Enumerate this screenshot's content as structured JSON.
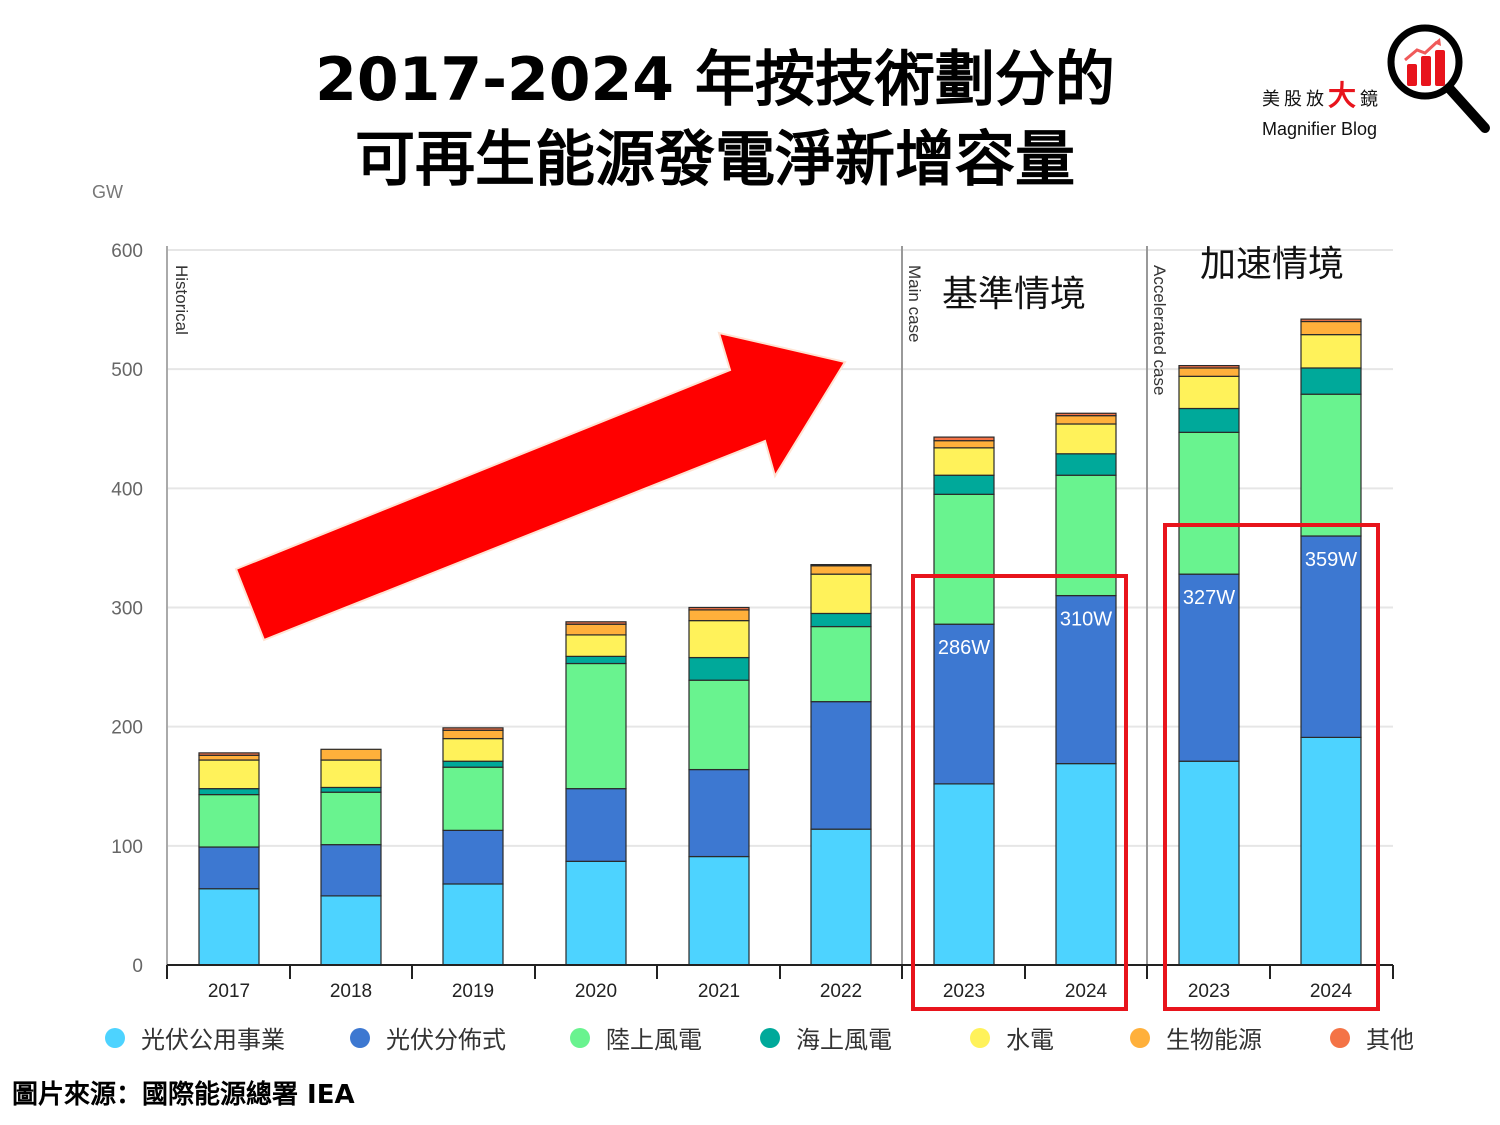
{
  "title": {
    "line1": "2017-2024 年按技術劃分的",
    "line2": "可再生能源發電淨新增容量"
  },
  "logo": {
    "cn_part1": "美股放",
    "cn_big": "大",
    "cn_part2": "鏡",
    "en": "Magnifier Blog",
    "icon": "magnifier-chart-icon"
  },
  "source": "圖片來源：國際能源總署 IEA",
  "annotations": {
    "main_case_cn": "基準情境",
    "accelerated_case_cn": "加速情境",
    "historical_label": "Historical",
    "main_case_label": "Main case",
    "accelerated_case_label": "Accelerated case",
    "solar_labels": [
      "286W",
      "310W",
      "327W",
      "359W"
    ],
    "trend_arrow": "up-right-arrow"
  },
  "chart_data": {
    "type": "bar",
    "stacked": true,
    "title": "2017-2024 年按技術劃分的可再生能源發電淨新增容量",
    "ylabel": "GW",
    "xlabel": "",
    "ylim": [
      0,
      600
    ],
    "yticks": [
      0,
      100,
      200,
      300,
      400,
      500,
      600
    ],
    "grid": true,
    "legend_position": "bottom",
    "groups": [
      {
        "name": "Historical",
        "categories": [
          "2017",
          "2018",
          "2019",
          "2020",
          "2021",
          "2022"
        ]
      },
      {
        "name": "Main case",
        "categories": [
          "2023",
          "2024"
        ]
      },
      {
        "name": "Accelerated case",
        "categories": [
          "2023",
          "2024"
        ]
      }
    ],
    "categories": [
      "2017",
      "2018",
      "2019",
      "2020",
      "2021",
      "2022",
      "2023",
      "2024",
      "2023",
      "2024"
    ],
    "series": [
      {
        "name": "光伏公用事業",
        "color": "#4dd3ff",
        "values": [
          64,
          58,
          68,
          87,
          91,
          114,
          152,
          169,
          171,
          191
        ]
      },
      {
        "name": "光伏分佈式",
        "color": "#3d78d1",
        "values": [
          35,
          43,
          45,
          61,
          73,
          107,
          134,
          141,
          157,
          169
        ]
      },
      {
        "name": "陸上風電",
        "color": "#69f38f",
        "values": [
          44,
          44,
          53,
          105,
          75,
          63,
          109,
          101,
          119,
          119
        ]
      },
      {
        "name": "海上風電",
        "color": "#00a99a",
        "values": [
          5,
          4,
          5,
          6,
          19,
          11,
          16,
          18,
          20,
          22
        ]
      },
      {
        "name": "水電",
        "color": "#fff25a",
        "values": [
          24,
          23,
          19,
          18,
          31,
          33,
          23,
          25,
          27,
          28
        ]
      },
      {
        "name": "生物能源",
        "color": "#ffb03b",
        "values": [
          4,
          9,
          7,
          9,
          9,
          7,
          6,
          7,
          7,
          11
        ]
      },
      {
        "name": "其他",
        "color": "#f47346",
        "values": [
          2,
          0,
          2,
          2,
          2,
          1,
          3,
          2,
          2,
          2
        ]
      }
    ]
  },
  "colors": {
    "highlight_box": "#e8141c",
    "arrow": "#ff0000",
    "grid": "#e6e6e6",
    "axis": "#222222"
  }
}
